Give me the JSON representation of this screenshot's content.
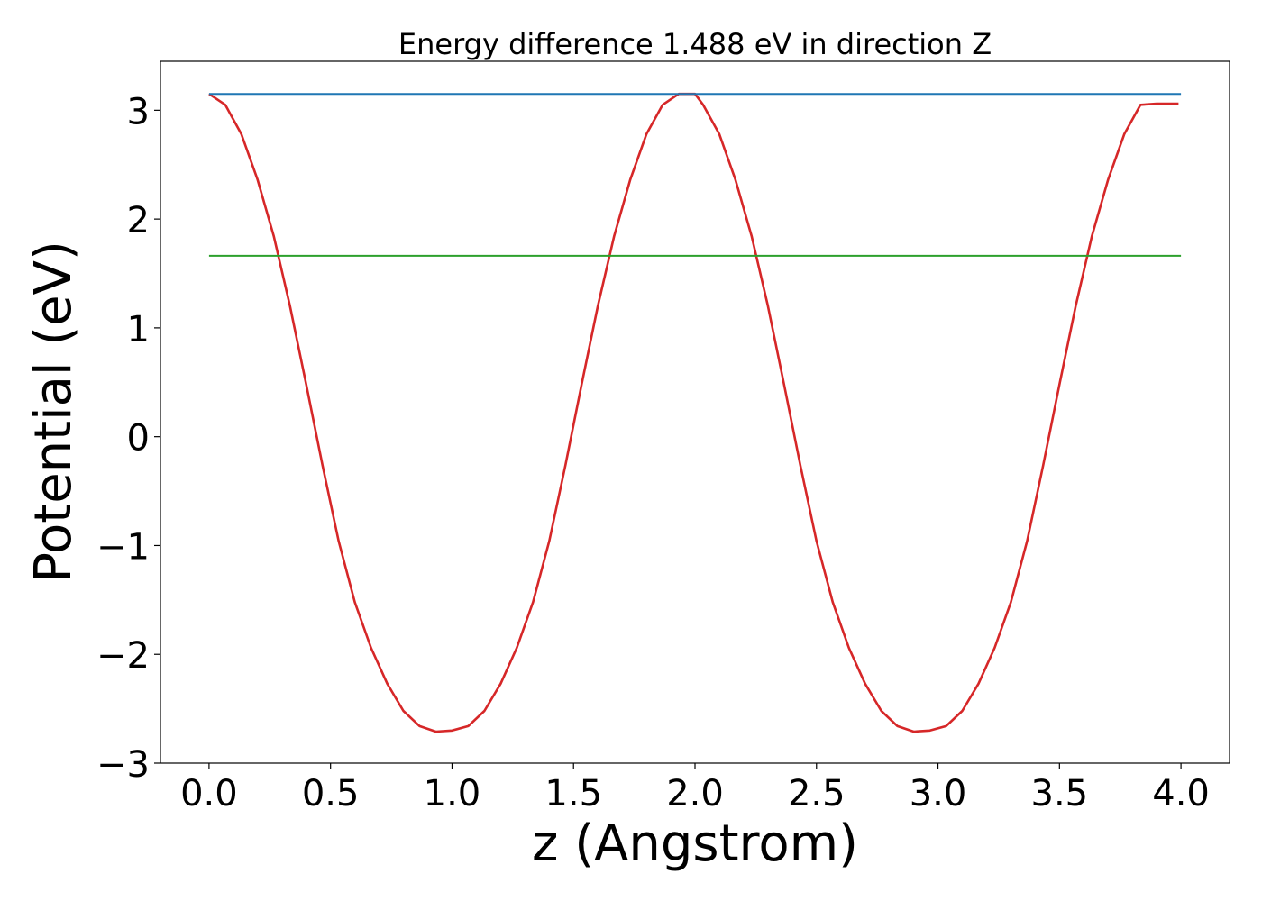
{
  "chart_data": {
    "type": "line",
    "title": "Energy difference 1.488 eV in direction Z",
    "xlabel": "z (Angstrom)",
    "ylabel": "Potential (eV)",
    "xlim": [
      -0.2,
      4.2
    ],
    "ylim": [
      -3.0,
      3.45
    ],
    "xticks": [
      0.0,
      0.5,
      1.0,
      1.5,
      2.0,
      2.5,
      3.0,
      3.5,
      4.0
    ],
    "xtick_labels": [
      "0.0",
      "0.5",
      "1.0",
      "1.5",
      "2.0",
      "2.5",
      "3.0",
      "3.5",
      "4.0"
    ],
    "yticks": [
      -3,
      -2,
      -1,
      0,
      1,
      2,
      3
    ],
    "ytick_labels": [
      "−3",
      "−2",
      "−1",
      "0",
      "1",
      "2",
      "3"
    ],
    "grid": false,
    "legend": "none",
    "series": [
      {
        "color": "#d62728",
        "x": [
          0.0,
          0.0667,
          0.1333,
          0.2,
          0.2667,
          0.3333,
          0.4,
          0.4667,
          0.5333,
          0.6,
          0.6667,
          0.7333,
          0.8,
          0.8667,
          0.9333,
          1.0,
          1.0667,
          1.1333,
          1.2,
          1.2667,
          1.3333,
          1.4,
          1.4667,
          1.5333,
          1.6,
          1.6667,
          1.7333,
          1.8,
          1.8667,
          1.9333,
          2.0,
          2.0333,
          2.1,
          2.1667,
          2.2333,
          2.3,
          2.3667,
          2.4333,
          2.5,
          2.5667,
          2.6333,
          2.7,
          2.7667,
          2.8333,
          2.9,
          2.9667,
          3.0333,
          3.1,
          3.1667,
          3.2333,
          3.3,
          3.3667,
          3.4333,
          3.5,
          3.5667,
          3.6333,
          3.7,
          3.7667,
          3.8333,
          3.9,
          3.9667,
          3.99
        ],
        "y": [
          3.15,
          3.05,
          2.78,
          2.36,
          1.84,
          1.2,
          0.48,
          -0.26,
          -0.96,
          -1.52,
          -1.94,
          -2.27,
          -2.52,
          -2.66,
          -2.71,
          -2.7,
          -2.66,
          -2.52,
          -2.27,
          -1.94,
          -1.52,
          -0.96,
          -0.26,
          0.48,
          1.2,
          1.84,
          2.36,
          2.78,
          3.05,
          3.15,
          3.15,
          3.05,
          2.78,
          2.36,
          1.84,
          1.2,
          0.48,
          -0.26,
          -0.96,
          -1.52,
          -1.94,
          -2.27,
          -2.52,
          -2.66,
          -2.71,
          -2.7,
          -2.66,
          -2.52,
          -2.27,
          -1.94,
          -1.52,
          -0.96,
          -0.26,
          0.48,
          1.2,
          1.84,
          2.36,
          2.78,
          3.05,
          3.06,
          3.06,
          3.06
        ]
      },
      {
        "color": "#1f77b4",
        "x": [
          0.0,
          4.0
        ],
        "y": [
          3.15,
          3.15
        ]
      },
      {
        "color": "#2ca02c",
        "x": [
          0.0,
          4.0
        ],
        "y": [
          1.662,
          1.662
        ]
      }
    ]
  }
}
